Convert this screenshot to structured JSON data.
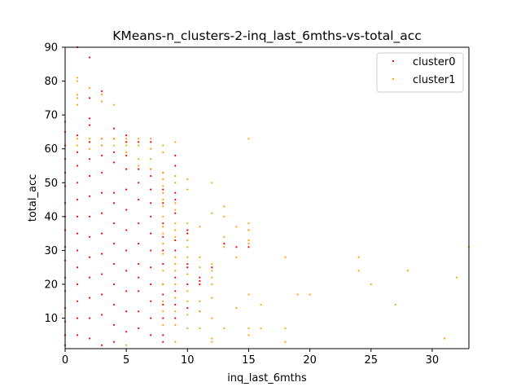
{
  "chart_data": {
    "type": "scatter",
    "title": "KMeans-n_clusters-2-inq_last_6mths-vs-total_acc",
    "xlabel": "inq_last_6mths",
    "ylabel": "total_acc",
    "xlim": [
      0,
      33
    ],
    "ylim": [
      1,
      90
    ],
    "xticks": [
      0,
      5,
      10,
      15,
      20,
      25,
      30
    ],
    "yticks": [
      10,
      20,
      30,
      40,
      50,
      60,
      70,
      80,
      90
    ],
    "grid": false,
    "legend_position": "top-right",
    "series": [
      {
        "name": "cluster0",
        "color": "#ff0000",
        "points": [
          [
            0,
            2
          ],
          [
            0,
            5
          ],
          [
            0,
            9
          ],
          [
            0,
            13
          ],
          [
            0,
            18
          ],
          [
            0,
            22
          ],
          [
            0,
            27
          ],
          [
            0,
            31
          ],
          [
            0,
            36
          ],
          [
            0,
            40
          ],
          [
            0,
            44
          ],
          [
            0,
            49
          ],
          [
            0,
            53
          ],
          [
            0,
            57
          ],
          [
            0,
            61
          ],
          [
            0,
            65
          ],
          [
            0,
            68
          ],
          [
            1,
            64
          ],
          [
            1,
            59
          ],
          [
            1,
            55
          ],
          [
            1,
            50
          ],
          [
            1,
            45
          ],
          [
            1,
            40
          ],
          [
            1,
            35
          ],
          [
            1,
            30
          ],
          [
            1,
            25
          ],
          [
            1,
            20
          ],
          [
            1,
            15
          ],
          [
            1,
            10
          ],
          [
            1,
            5
          ],
          [
            1,
            90
          ],
          [
            2,
            87
          ],
          [
            2,
            75
          ],
          [
            2,
            69
          ],
          [
            2,
            67
          ],
          [
            2,
            62
          ],
          [
            2,
            57
          ],
          [
            2,
            52
          ],
          [
            2,
            46
          ],
          [
            2,
            40
          ],
          [
            2,
            34
          ],
          [
            2,
            28
          ],
          [
            2,
            22
          ],
          [
            2,
            16
          ],
          [
            2,
            10
          ],
          [
            2,
            4
          ],
          [
            3,
            77
          ],
          [
            3,
            63
          ],
          [
            3,
            61
          ],
          [
            3,
            58
          ],
          [
            3,
            53
          ],
          [
            3,
            47
          ],
          [
            3,
            41
          ],
          [
            3,
            35
          ],
          [
            3,
            29
          ],
          [
            3,
            23
          ],
          [
            3,
            17
          ],
          [
            3,
            11
          ],
          [
            3,
            2
          ],
          [
            4,
            66
          ],
          [
            4,
            63
          ],
          [
            4,
            59
          ],
          [
            4,
            56
          ],
          [
            4,
            47
          ],
          [
            4,
            44
          ],
          [
            4,
            38
          ],
          [
            4,
            32
          ],
          [
            4,
            26
          ],
          [
            4,
            20
          ],
          [
            4,
            14
          ],
          [
            4,
            8
          ],
          [
            4,
            3
          ],
          [
            5,
            64
          ],
          [
            5,
            62
          ],
          [
            5,
            58
          ],
          [
            5,
            54
          ],
          [
            5,
            48
          ],
          [
            5,
            42
          ],
          [
            5,
            36
          ],
          [
            5,
            30
          ],
          [
            5,
            24
          ],
          [
            5,
            18
          ],
          [
            5,
            12
          ],
          [
            5,
            6
          ],
          [
            6,
            62
          ],
          [
            6,
            54
          ],
          [
            6,
            50
          ],
          [
            6,
            45
          ],
          [
            6,
            38
          ],
          [
            6,
            32
          ],
          [
            6,
            26
          ],
          [
            6,
            22
          ],
          [
            6,
            18
          ],
          [
            6,
            12
          ],
          [
            6,
            7
          ],
          [
            7,
            62
          ],
          [
            7,
            54
          ],
          [
            7,
            52
          ],
          [
            7,
            48
          ],
          [
            7,
            44
          ],
          [
            7,
            40
          ],
          [
            7,
            35
          ],
          [
            7,
            30
          ],
          [
            7,
            25
          ],
          [
            7,
            20
          ],
          [
            7,
            15
          ],
          [
            7,
            10
          ],
          [
            7,
            5
          ],
          [
            8,
            53
          ],
          [
            8,
            48
          ],
          [
            8,
            44
          ],
          [
            8,
            38
          ],
          [
            8,
            34
          ],
          [
            8,
            30
          ],
          [
            8,
            26
          ],
          [
            8,
            20
          ],
          [
            8,
            17
          ],
          [
            8,
            14
          ],
          [
            8,
            10
          ],
          [
            8,
            5
          ],
          [
            8,
            3
          ],
          [
            9,
            58
          ],
          [
            9,
            55
          ],
          [
            9,
            47
          ],
          [
            9,
            45
          ],
          [
            9,
            41
          ],
          [
            9,
            33
          ],
          [
            9,
            30
          ],
          [
            9,
            22
          ],
          [
            9,
            18
          ],
          [
            9,
            14
          ],
          [
            9,
            10
          ],
          [
            10,
            36
          ],
          [
            10,
            35
          ],
          [
            10,
            26
          ],
          [
            10,
            25
          ],
          [
            10,
            20
          ],
          [
            10,
            13
          ],
          [
            11,
            22
          ],
          [
            11,
            21
          ],
          [
            11,
            20
          ],
          [
            11,
            12
          ],
          [
            12,
            25
          ],
          [
            13,
            32
          ],
          [
            14,
            31
          ],
          [
            15,
            36
          ],
          [
            15,
            31
          ]
        ]
      },
      {
        "name": "cluster1",
        "color": "#ffa500",
        "points": [
          [
            1,
            81
          ],
          [
            1,
            80
          ],
          [
            1,
            76
          ],
          [
            1,
            75
          ],
          [
            1,
            73
          ],
          [
            1,
            63
          ],
          [
            1,
            61
          ],
          [
            2,
            78
          ],
          [
            2,
            63
          ],
          [
            2,
            60
          ],
          [
            3,
            76
          ],
          [
            3,
            74
          ],
          [
            3,
            63
          ],
          [
            3,
            61
          ],
          [
            4,
            73
          ],
          [
            4,
            63
          ],
          [
            4,
            61
          ],
          [
            5,
            63
          ],
          [
            5,
            61
          ],
          [
            5,
            59
          ],
          [
            5,
            2
          ],
          [
            6,
            63
          ],
          [
            6,
            61
          ],
          [
            6,
            57
          ],
          [
            6,
            55
          ],
          [
            7,
            63
          ],
          [
            7,
            60
          ],
          [
            7,
            57
          ],
          [
            7,
            54
          ],
          [
            8,
            61
          ],
          [
            8,
            59
          ],
          [
            8,
            53
          ],
          [
            8,
            51
          ],
          [
            8,
            49
          ],
          [
            8,
            47
          ],
          [
            8,
            45
          ],
          [
            8,
            43
          ],
          [
            8,
            40
          ],
          [
            8,
            37
          ],
          [
            8,
            35
          ],
          [
            8,
            32
          ],
          [
            8,
            29
          ],
          [
            8,
            24
          ],
          [
            8,
            20
          ],
          [
            8,
            15
          ],
          [
            8,
            12
          ],
          [
            8,
            8
          ],
          [
            9,
            62
          ],
          [
            9,
            52
          ],
          [
            9,
            50
          ],
          [
            9,
            44
          ],
          [
            9,
            42
          ],
          [
            9,
            38
          ],
          [
            9,
            36
          ],
          [
            9,
            34
          ],
          [
            9,
            28
          ],
          [
            9,
            26
          ],
          [
            9,
            24
          ],
          [
            9,
            20
          ],
          [
            9,
            16
          ],
          [
            9,
            12
          ],
          [
            9,
            8
          ],
          [
            9,
            3
          ],
          [
            10,
            51
          ],
          [
            10,
            48
          ],
          [
            10,
            38
          ],
          [
            10,
            33
          ],
          [
            10,
            31
          ],
          [
            10,
            28
          ],
          [
            10,
            23
          ],
          [
            10,
            18
          ],
          [
            10,
            15
          ],
          [
            10,
            11
          ],
          [
            10,
            7
          ],
          [
            11,
            37
          ],
          [
            11,
            28
          ],
          [
            11,
            25
          ],
          [
            11,
            15
          ],
          [
            11,
            12
          ],
          [
            11,
            7
          ],
          [
            12,
            50
          ],
          [
            12,
            41
          ],
          [
            12,
            26
          ],
          [
            12,
            24
          ],
          [
            12,
            22
          ],
          [
            12,
            20
          ],
          [
            12,
            16
          ],
          [
            12,
            10
          ],
          [
            12,
            4
          ],
          [
            12,
            3
          ],
          [
            13,
            43
          ],
          [
            13,
            40
          ],
          [
            13,
            34
          ],
          [
            13,
            31
          ],
          [
            13,
            7
          ],
          [
            14,
            37
          ],
          [
            14,
            28
          ],
          [
            14,
            13
          ],
          [
            15,
            63
          ],
          [
            15,
            38
          ],
          [
            15,
            36
          ],
          [
            15,
            33
          ],
          [
            15,
            32
          ],
          [
            15,
            17
          ],
          [
            15,
            7
          ],
          [
            15,
            5
          ],
          [
            16,
            14
          ],
          [
            16,
            7
          ],
          [
            18,
            28
          ],
          [
            18,
            7
          ],
          [
            18,
            3
          ],
          [
            19,
            17
          ],
          [
            20,
            17
          ],
          [
            24,
            28
          ],
          [
            24,
            24
          ],
          [
            25,
            20
          ],
          [
            27,
            14
          ],
          [
            28,
            24
          ],
          [
            31,
            4
          ],
          [
            32,
            22
          ],
          [
            33,
            31
          ]
        ]
      }
    ]
  }
}
